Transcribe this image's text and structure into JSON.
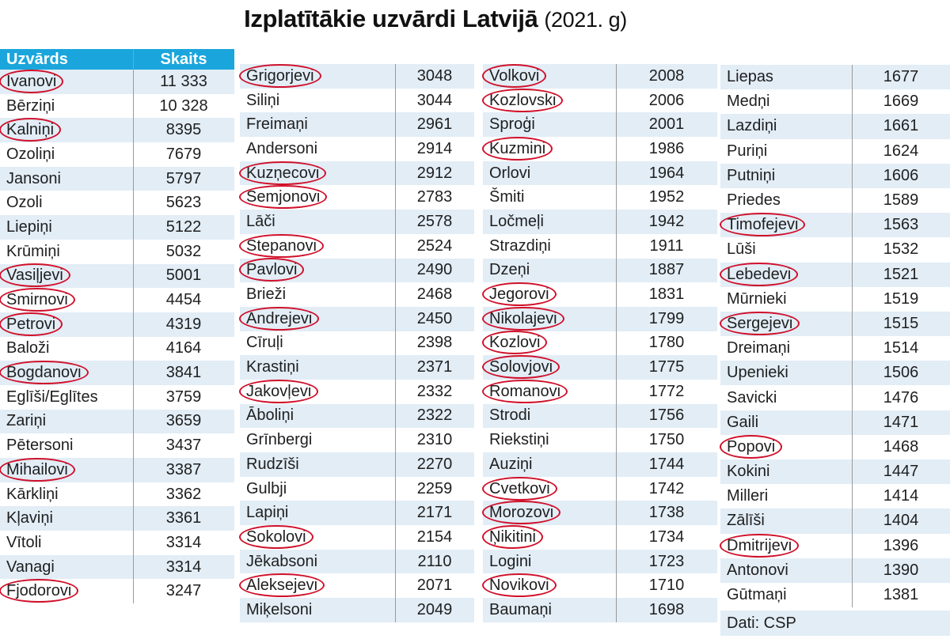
{
  "title": "Izplatītākie uzvārdi Latvijā",
  "year": "(2021. g)",
  "headers": {
    "surname": "Uzvārds",
    "count": "Skaits"
  },
  "source": "Dati: CSP",
  "columns": [
    [
      {
        "name": "Ivanovi",
        "count": "11 333",
        "circled": true
      },
      {
        "name": "Bērziņi",
        "count": "10 328",
        "circled": false
      },
      {
        "name": "Kalniņi",
        "count": "8395",
        "circled": true
      },
      {
        "name": "Ozoliņi",
        "count": "7679",
        "circled": false
      },
      {
        "name": "Jansoni",
        "count": "5797",
        "circled": false
      },
      {
        "name": "Ozoli",
        "count": "5623",
        "circled": false
      },
      {
        "name": "Liepiņi",
        "count": "5122",
        "circled": false
      },
      {
        "name": "Krūmiņi",
        "count": "5032",
        "circled": false
      },
      {
        "name": "Vasiļjevi",
        "count": "5001",
        "circled": true
      },
      {
        "name": "Smirnovi",
        "count": "4454",
        "circled": true
      },
      {
        "name": "Petrovi",
        "count": "4319",
        "circled": true
      },
      {
        "name": "Baloži",
        "count": "4164",
        "circled": false
      },
      {
        "name": "Bogdanovi",
        "count": "3841",
        "circled": true
      },
      {
        "name": "Eglīši/Eglītes",
        "count": "3759",
        "circled": false
      },
      {
        "name": "Zariņi",
        "count": "3659",
        "circled": false
      },
      {
        "name": "Pētersoni",
        "count": "3437",
        "circled": false
      },
      {
        "name": "Mihailovi",
        "count": "3387",
        "circled": true
      },
      {
        "name": "Kārkliņi",
        "count": "3362",
        "circled": false
      },
      {
        "name": "Kļaviņi",
        "count": "3361",
        "circled": false
      },
      {
        "name": "Vītoli",
        "count": "3314",
        "circled": false
      },
      {
        "name": "Vanagi",
        "count": "3314",
        "circled": false
      },
      {
        "name": "Fjodorovi",
        "count": "3247",
        "circled": true
      }
    ],
    [
      {
        "name": "Grigorjevi",
        "count": "3048",
        "circled": true
      },
      {
        "name": "Siliņi",
        "count": "3044",
        "circled": false
      },
      {
        "name": "Freimaņi",
        "count": "2961",
        "circled": false
      },
      {
        "name": "Andersoni",
        "count": "2914",
        "circled": false
      },
      {
        "name": "Kuzņecovi",
        "count": "2912",
        "circled": true
      },
      {
        "name": "Semjonovi",
        "count": "2783",
        "circled": true
      },
      {
        "name": "Lāči",
        "count": "2578",
        "circled": false
      },
      {
        "name": "Stepanovi",
        "count": "2524",
        "circled": true
      },
      {
        "name": "Pavlovi",
        "count": "2490",
        "circled": true
      },
      {
        "name": "Brieži",
        "count": "2468",
        "circled": false
      },
      {
        "name": "Andrejevi",
        "count": "2450",
        "circled": true
      },
      {
        "name": "Cīruļi",
        "count": "2398",
        "circled": false
      },
      {
        "name": "Krastiņi",
        "count": "2371",
        "circled": false
      },
      {
        "name": "Jakovļevi",
        "count": "2332",
        "circled": true
      },
      {
        "name": "Āboliņi",
        "count": "2322",
        "circled": false
      },
      {
        "name": "Grīnbergi",
        "count": "2310",
        "circled": false
      },
      {
        "name": "Rudzīši",
        "count": "2270",
        "circled": false
      },
      {
        "name": "Gulbji",
        "count": "2259",
        "circled": false
      },
      {
        "name": "Lapiņi",
        "count": "2171",
        "circled": false
      },
      {
        "name": "Sokolovi",
        "count": "2154",
        "circled": true
      },
      {
        "name": "Jēkabsoni",
        "count": "2110",
        "circled": false
      },
      {
        "name": "Aleksejevi",
        "count": "2071",
        "circled": true
      },
      {
        "name": "Miķelsoni",
        "count": "2049",
        "circled": false
      }
    ],
    [
      {
        "name": "Volkovi",
        "count": "2008",
        "circled": true
      },
      {
        "name": "Kozlovski",
        "count": "2006",
        "circled": true
      },
      {
        "name": "Sproģi",
        "count": "2001",
        "circled": false
      },
      {
        "name": "Kuzmini",
        "count": "1986",
        "circled": true
      },
      {
        "name": "Orlovi",
        "count": "1964",
        "circled": false
      },
      {
        "name": "Šmiti",
        "count": "1952",
        "circled": false
      },
      {
        "name": "Ločmeļi",
        "count": "1942",
        "circled": false
      },
      {
        "name": "Strazdiņi",
        "count": "1911",
        "circled": false
      },
      {
        "name": "Dzeņi",
        "count": "1887",
        "circled": false
      },
      {
        "name": "Jegorovi",
        "count": "1831",
        "circled": true
      },
      {
        "name": "Nikolajevi",
        "count": "1799",
        "circled": true
      },
      {
        "name": "Kozlovi",
        "count": "1780",
        "circled": true
      },
      {
        "name": "Solovjovi",
        "count": "1775",
        "circled": true
      },
      {
        "name": "Romanovi",
        "count": "1772",
        "circled": true
      },
      {
        "name": "Strodi",
        "count": "1756",
        "circled": false
      },
      {
        "name": "Riekstiņi",
        "count": "1750",
        "circled": false
      },
      {
        "name": "Auziņi",
        "count": "1744",
        "circled": false
      },
      {
        "name": "Cvetkovi",
        "count": "1742",
        "circled": true
      },
      {
        "name": "Morozovi",
        "count": "1738",
        "circled": true
      },
      {
        "name": "Ņikitini",
        "count": "1734",
        "circled": true
      },
      {
        "name": "Loginі",
        "count": "1723",
        "circled": false
      },
      {
        "name": "Novikovi",
        "count": "1710",
        "circled": true
      },
      {
        "name": "Baumaņi",
        "count": "1698",
        "circled": false
      }
    ],
    [
      {
        "name": "Liepas",
        "count": "1677",
        "circled": false
      },
      {
        "name": "Medņi",
        "count": "1669",
        "circled": false
      },
      {
        "name": "Lazdiņi",
        "count": "1661",
        "circled": false
      },
      {
        "name": "Puriņi",
        "count": "1624",
        "circled": false
      },
      {
        "name": "Putniņi",
        "count": "1606",
        "circled": false
      },
      {
        "name": "Priedes",
        "count": "1589",
        "circled": false
      },
      {
        "name": "Timofejevi",
        "count": "1563",
        "circled": true
      },
      {
        "name": "Lūši",
        "count": "1532",
        "circled": false
      },
      {
        "name": "Lebedevi",
        "count": "1521",
        "circled": true
      },
      {
        "name": "Mūrnieki",
        "count": "1519",
        "circled": false
      },
      {
        "name": "Sergejevi",
        "count": "1515",
        "circled": true
      },
      {
        "name": "Dreimaņi",
        "count": "1514",
        "circled": false
      },
      {
        "name": "Upenieki",
        "count": "1506",
        "circled": false
      },
      {
        "name": "Savicki",
        "count": "1476",
        "circled": false
      },
      {
        "name": "Gaili",
        "count": "1471",
        "circled": false
      },
      {
        "name": "Popovi",
        "count": "1468",
        "circled": true
      },
      {
        "name": "Kokini",
        "count": "1447",
        "circled": false
      },
      {
        "name": "Milleri",
        "count": "1414",
        "circled": false
      },
      {
        "name": "Zālīši",
        "count": "1404",
        "circled": false
      },
      {
        "name": "Dmitrijevi",
        "count": "1396",
        "circled": true
      },
      {
        "name": "Antonovi",
        "count": "1390",
        "circled": false
      },
      {
        "name": "Gūtmaņi",
        "count": "1381",
        "circled": false
      }
    ]
  ]
}
